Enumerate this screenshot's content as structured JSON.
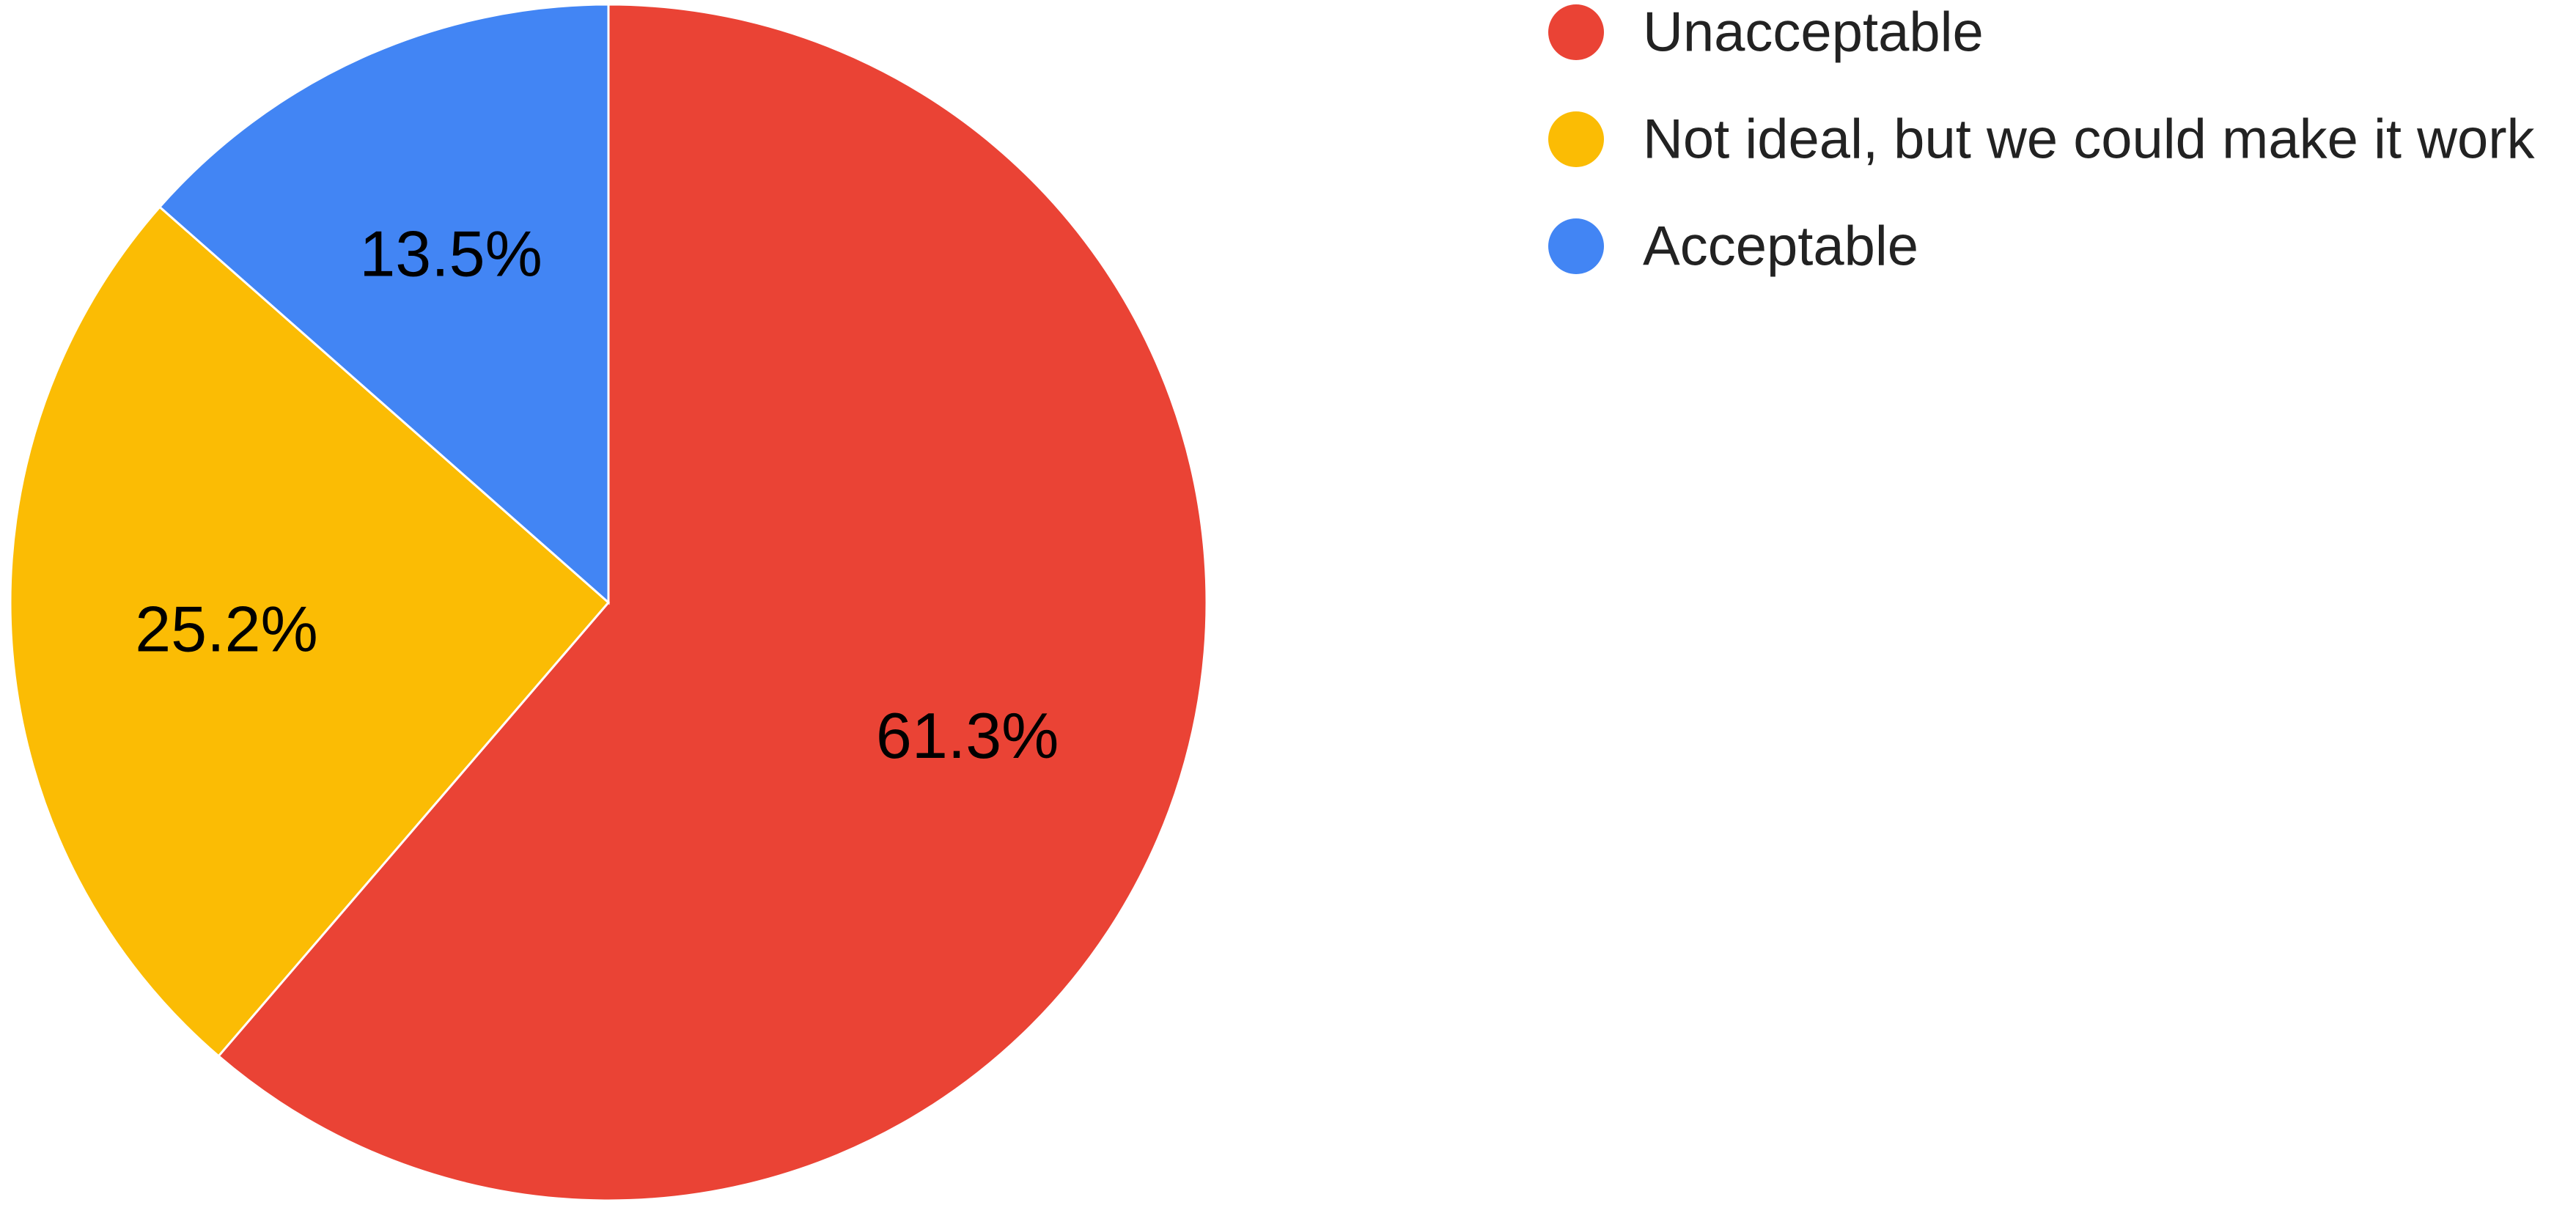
{
  "chart_data": {
    "type": "pie",
    "title": "",
    "start_angle_deg": 0,
    "direction": "clockwise",
    "legend_position": "right",
    "slices": [
      {
        "label": "Unacceptable",
        "value": 61.3,
        "display": "61.3%",
        "color": "#EA4335"
      },
      {
        "label": "Not ideal, but we could make it work",
        "value": 25.2,
        "display": "25.2%",
        "color": "#FBBC04"
      },
      {
        "label": "Acceptable",
        "value": 13.5,
        "display": "13.5%",
        "color": "#4285F4"
      }
    ]
  }
}
